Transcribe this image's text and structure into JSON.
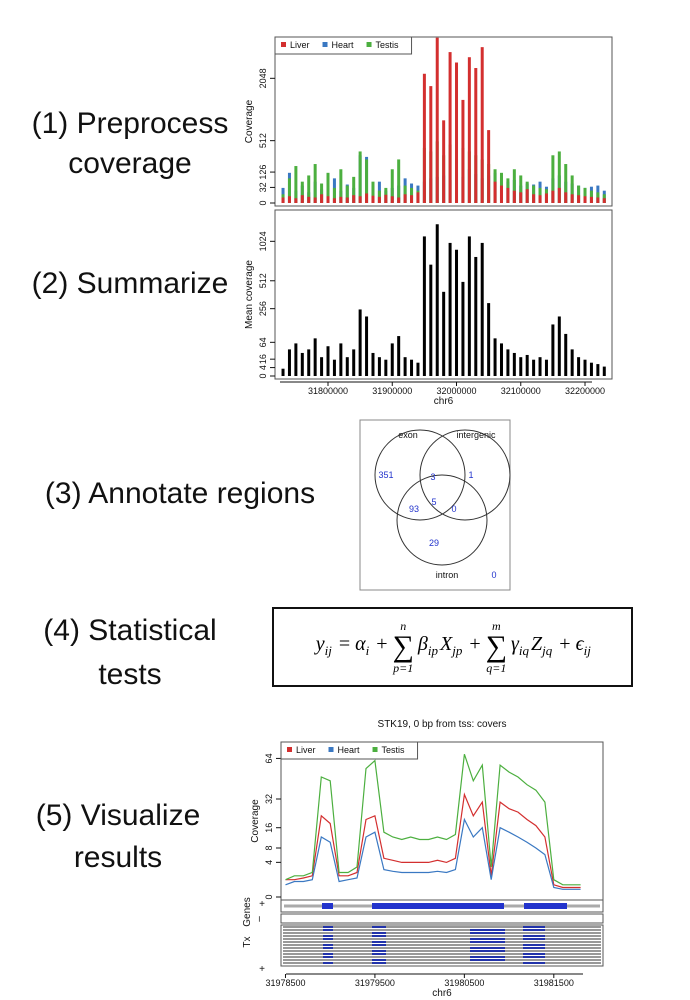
{
  "steps": [
    [
      "(1) Preprocess",
      "coverage"
    ],
    [
      "(2) Summarize"
    ],
    [
      "(3) Annotate regions"
    ],
    [
      "(4) Statistical",
      "tests"
    ],
    [
      "(5) Visualize",
      "results"
    ]
  ],
  "chart_data": [
    {
      "type": "bar",
      "ylabel": "Coverage",
      "legend": "top-left",
      "yscale": "sqrt",
      "x": [
        31730000,
        31740000,
        31750000,
        31760000,
        31770000,
        31780000,
        31790000,
        31800000,
        31810000,
        31820000,
        31830000,
        31840000,
        31850000,
        31860000,
        31870000,
        31880000,
        31890000,
        31900000,
        31910000,
        31920000,
        31930000,
        31940000,
        31950000,
        31960000,
        31970000,
        31980000,
        31990000,
        32000000,
        32010000,
        32020000,
        32030000,
        32040000,
        32050000,
        32060000,
        32070000,
        32080000,
        32090000,
        32100000,
        32110000,
        32120000,
        32130000,
        32140000,
        32150000,
        32160000,
        32170000,
        32180000,
        32190000,
        32200000,
        32210000,
        32220000,
        32230000
      ],
      "series": [
        {
          "name": "Liver",
          "color": "#d32f2f",
          "values": [
            4,
            6,
            3,
            8,
            5,
            4,
            10,
            6,
            3,
            5,
            4,
            8,
            6,
            12,
            7,
            5,
            9,
            6,
            4,
            10,
            8,
            15,
            2200,
            1800,
            3600,
            900,
            3000,
            2600,
            1400,
            2800,
            2400,
            3200,
            700,
            60,
            40,
            30,
            20,
            15,
            25,
            10,
            8,
            12,
            20,
            30,
            15,
            10,
            8,
            6,
            5,
            4,
            3
          ]
        },
        {
          "name": "Heart",
          "color": "#3a78c2",
          "values": [
            30,
            120,
            20,
            40,
            15,
            60,
            25,
            30,
            80,
            20,
            45,
            30,
            300,
            280,
            40,
            60,
            20,
            30,
            40,
            80,
            50,
            40,
            60,
            80,
            90,
            100,
            70,
            120,
            90,
            150,
            110,
            80,
            100,
            120,
            90,
            60,
            70,
            40,
            50,
            45,
            60,
            35,
            80,
            100,
            60,
            50,
            40,
            30,
            35,
            40,
            20
          ]
        },
        {
          "name": "Testis",
          "color": "#4caf3f",
          "values": [
            10,
            80,
            180,
            60,
            100,
            200,
            50,
            120,
            30,
            150,
            40,
            90,
            350,
            250,
            60,
            20,
            30,
            150,
            250,
            40,
            30,
            20,
            400,
            350,
            500,
            300,
            450,
            260,
            400,
            350,
            300,
            250,
            200,
            150,
            120,
            80,
            150,
            100,
            60,
            40,
            30,
            25,
            300,
            350,
            200,
            100,
            40,
            30,
            20,
            15,
            10
          ]
        }
      ],
      "xlim": [
        31717500,
        32242000
      ],
      "ylim": [
        0,
        3500
      ],
      "yticks": [
        0,
        32,
        126,
        512,
        2048
      ]
    },
    {
      "type": "bar",
      "ylabel": "Mean coverage",
      "xlabel": "chr6",
      "yscale": "sqrt",
      "color": "#000000",
      "x": [
        31730000,
        31740000,
        31750000,
        31760000,
        31770000,
        31780000,
        31790000,
        31800000,
        31810000,
        31820000,
        31830000,
        31840000,
        31850000,
        31860000,
        31870000,
        31880000,
        31890000,
        31900000,
        31910000,
        31920000,
        31930000,
        31940000,
        31950000,
        31960000,
        31970000,
        31980000,
        31990000,
        32000000,
        32010000,
        32020000,
        32030000,
        32040000,
        32050000,
        32060000,
        32070000,
        32080000,
        32090000,
        32100000,
        32110000,
        32120000,
        32130000,
        32140000,
        32150000,
        32160000,
        32170000,
        32180000,
        32190000,
        32200000,
        32210000,
        32220000,
        32230000
      ],
      "values": [
        3,
        40,
        60,
        30,
        40,
        80,
        20,
        50,
        15,
        60,
        20,
        40,
        250,
        200,
        30,
        20,
        15,
        60,
        90,
        20,
        15,
        10,
        1100,
        700,
        1300,
        400,
        1000,
        900,
        500,
        1100,
        800,
        1000,
        300,
        80,
        60,
        40,
        30,
        20,
        25,
        15,
        20,
        15,
        150,
        200,
        100,
        40,
        20,
        15,
        10,
        8,
        5
      ],
      "xlim": [
        31717500,
        32242000
      ],
      "ylim": [
        0,
        1500
      ],
      "xticks": [
        31800000,
        31900000,
        32000000,
        32100000,
        32200000
      ],
      "yticks": [
        0,
        4,
        16,
        64,
        256,
        512,
        1024
      ]
    },
    {
      "type": "line",
      "title": "STK19, 0 bp from tss: covers",
      "ylabel": "Coverage",
      "xlabel": "chr6",
      "legend": "top-left",
      "yscale": "sqrt",
      "x": [
        31978500,
        31978600,
        31978700,
        31978800,
        31978900,
        31979000,
        31979100,
        31979200,
        31979300,
        31979400,
        31979500,
        31979600,
        31979700,
        31979800,
        31979900,
        31980000,
        31980100,
        31980200,
        31980300,
        31980400,
        31980500,
        31980600,
        31980700,
        31980800,
        31980900,
        31981000,
        31981100,
        31981200,
        31981300,
        31981400,
        31981500,
        31981600,
        31981700,
        31981800
      ],
      "series": [
        {
          "name": "Liver",
          "color": "#d32f2f",
          "values": [
            1,
            1,
            1.2,
            1.5,
            22,
            18,
            1.5,
            1.5,
            2,
            20,
            22,
            5,
            4.5,
            4,
            4,
            4,
            4,
            4.5,
            4,
            5,
            35,
            22,
            30,
            1.5,
            30,
            26,
            24,
            20,
            17,
            12,
            0.5,
            0.3,
            0.3,
            0.3
          ]
        },
        {
          "name": "Heart",
          "color": "#3a78c2",
          "values": [
            0.5,
            0.8,
            0.8,
            1,
            12,
            10,
            0.8,
            1,
            1.2,
            12,
            14,
            2.5,
            2.2,
            2,
            2,
            2,
            2,
            2.2,
            2,
            2.5,
            20,
            12,
            16,
            1,
            16,
            14,
            12,
            10,
            8,
            6,
            0.3,
            0.2,
            0.2,
            0.2
          ]
        },
        {
          "name": "Testis",
          "color": "#4caf3f",
          "values": [
            1,
            1.5,
            1.5,
            2,
            48,
            45,
            2,
            2,
            3,
            55,
            62,
            14,
            12,
            11,
            12,
            11,
            11,
            12,
            11,
            13,
            68,
            45,
            58,
            3,
            58,
            52,
            48,
            42,
            38,
            30,
            1,
            0.5,
            0.5,
            0.5
          ]
        }
      ],
      "xlim": [
        31978450,
        31982050
      ],
      "ylim": [
        0,
        77
      ],
      "xticks": [
        31978500,
        31979500,
        31980500,
        31981500
      ],
      "yticks": [
        0,
        4,
        8,
        16,
        32,
        64
      ],
      "track_labels": {
        "genes": "Genes",
        "tx": "Tx",
        "plus": "+",
        "minus": "–",
        "tx_plus": "+"
      }
    }
  ],
  "venn": {
    "sets": [
      "exon",
      "intergenic",
      "intron"
    ],
    "counts": [
      351,
      3,
      1,
      93,
      5,
      0,
      29,
      0
    ]
  },
  "equation": [
    {
      "sym": "y",
      "sub": "ij"
    },
    {
      "op": "="
    },
    {
      "sym": "α",
      "sub": "i"
    },
    {
      "op": "+"
    },
    {
      "sum": "∑",
      "lower": "p=1",
      "upper": "n"
    },
    {
      "sym": "β",
      "sub": "ip"
    },
    {
      "sym": "X",
      "sub": "jp"
    },
    {
      "op": "+"
    },
    {
      "sum": "∑",
      "lower": "q=1",
      "upper": "m"
    },
    {
      "sym": "γ",
      "sub": "iq"
    },
    {
      "sym": "Z",
      "sub": "jq"
    },
    {
      "op": "+"
    },
    {
      "sym": "ϵ",
      "sub": "ij"
    }
  ]
}
